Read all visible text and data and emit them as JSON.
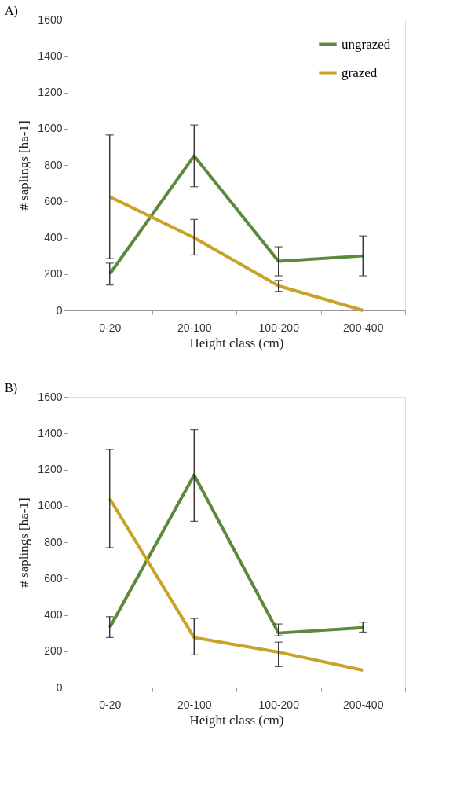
{
  "chart_data": [
    {
      "type": "line",
      "title": "A)",
      "xlabel": "Height class (cm)",
      "ylabel": "# saplings [ha-1]",
      "categories": [
        "0-20",
        "20-100",
        "100-200",
        "200-400"
      ],
      "series": [
        {
          "name": "ungrazed",
          "color": "#5b8a3c",
          "values": [
            200,
            850,
            270,
            300
          ],
          "errors": [
            [
              140,
              260
            ],
            [
              680,
              1020
            ],
            [
              190,
              350
            ],
            [
              190,
              410
            ]
          ]
        },
        {
          "name": "grazed",
          "color": "#c9a227",
          "values": [
            625,
            400,
            135,
            0
          ],
          "errors": [
            [
              285,
              965
            ],
            [
              305,
              500
            ],
            [
              105,
              165
            ],
            null
          ]
        }
      ],
      "ylim": [
        0,
        1600
      ],
      "yticks": [
        0,
        200,
        400,
        600,
        800,
        1000,
        1200,
        1400,
        1600
      ],
      "grid": false,
      "legend": "top right",
      "marker": "none"
    },
    {
      "type": "line",
      "title": "B)",
      "xlabel": "Height class (cm)",
      "ylabel": "# saplings [ha-1]",
      "categories": [
        "0-20",
        "20-100",
        "100-200",
        "200-400"
      ],
      "series": [
        {
          "name": "ungrazed",
          "color": "#5b8a3c",
          "values": [
            330,
            1170,
            300,
            330
          ],
          "errors": [
            [
              275,
              390
            ],
            [
              915,
              1420
            ],
            [
              285,
              350
            ],
            [
              305,
              360
            ]
          ]
        },
        {
          "name": "grazed",
          "color": "#c9a227",
          "values": [
            1040,
            275,
            195,
            95
          ],
          "errors": [
            [
              770,
              1310
            ],
            [
              180,
              380
            ],
            [
              115,
              250
            ],
            null
          ]
        }
      ],
      "ylim": [
        0,
        1600
      ],
      "yticks": [
        0,
        200,
        400,
        600,
        800,
        1000,
        1200,
        1400,
        1600
      ],
      "grid": false,
      "legend": "top right",
      "marker": "none"
    }
  ]
}
